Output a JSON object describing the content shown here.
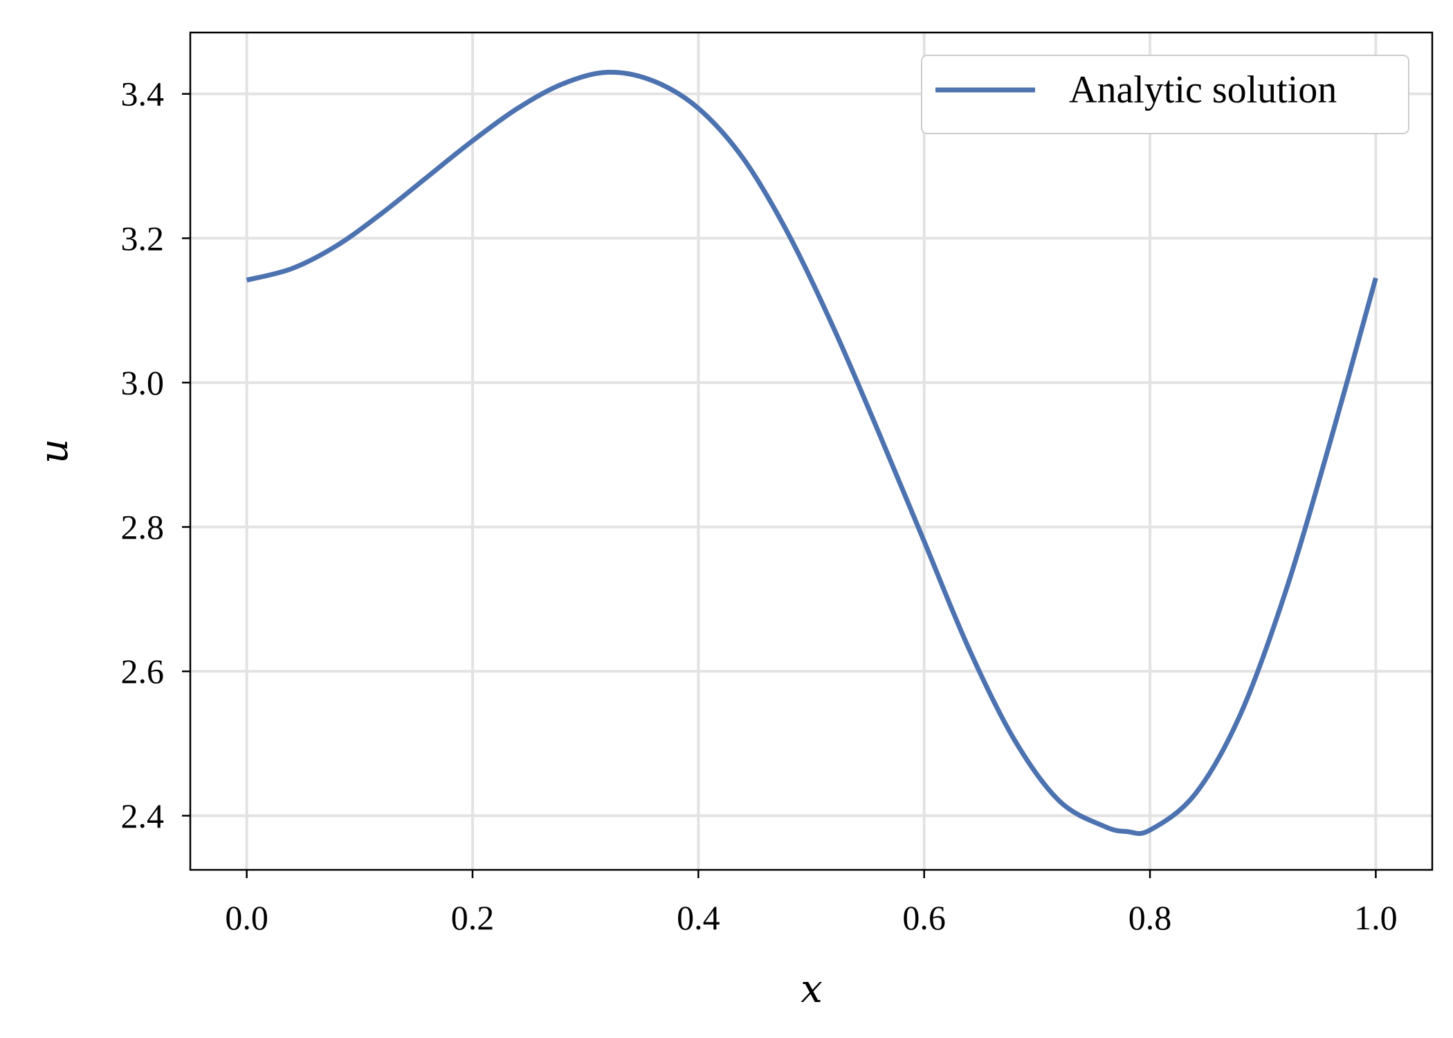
{
  "chart_data": {
    "type": "line",
    "title": "",
    "xlabel": "x",
    "ylabel": "u",
    "xlim": [
      -0.05,
      1.05
    ],
    "ylim": [
      2.325,
      3.485
    ],
    "xticks": [
      0.0,
      0.2,
      0.4,
      0.6,
      0.8,
      1.0
    ],
    "xtick_labels": [
      "0.0",
      "0.2",
      "0.4",
      "0.6",
      "0.8",
      "1.0"
    ],
    "yticks": [
      2.4,
      2.6,
      2.8,
      3.0,
      3.2,
      3.4
    ],
    "ytick_labels": [
      "2.4",
      "2.6",
      "2.8",
      "3.0",
      "3.2",
      "3.4"
    ],
    "grid": true,
    "legend_position": "top-right",
    "colors": {
      "series": "#4c72b0",
      "grid": "#e3e3e3",
      "frame": "#000000",
      "legend_border": "#cccccc"
    },
    "series": [
      {
        "name": "Analytic solution",
        "x": [
          0.0,
          0.04,
          0.08,
          0.12,
          0.16,
          0.2,
          0.24,
          0.28,
          0.32,
          0.36,
          0.4,
          0.44,
          0.48,
          0.52,
          0.56,
          0.6,
          0.64,
          0.68,
          0.72,
          0.76,
          0.78,
          0.8,
          0.84,
          0.88,
          0.92,
          0.96,
          1.0
        ],
        "y": [
          3.142,
          3.158,
          3.19,
          3.235,
          3.285,
          3.335,
          3.38,
          3.414,
          3.43,
          3.418,
          3.38,
          3.31,
          3.205,
          3.075,
          2.93,
          2.78,
          2.63,
          2.505,
          2.42,
          2.385,
          2.378,
          2.38,
          2.43,
          2.54,
          2.71,
          2.92,
          3.145
        ]
      }
    ]
  }
}
